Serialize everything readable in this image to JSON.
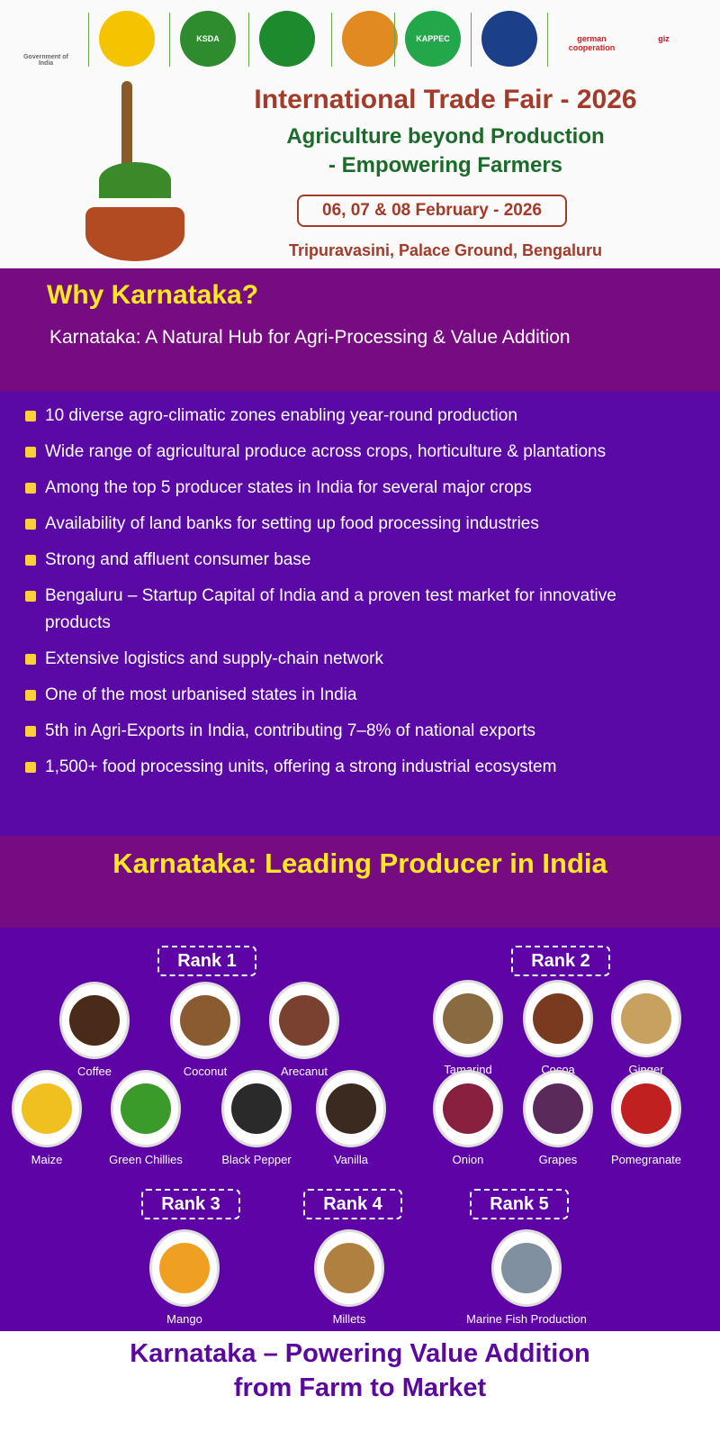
{
  "logos": [
    {
      "name": "government-of-india-emblem",
      "text": "Government of India",
      "color": "#666666"
    },
    {
      "name": "karnataka-govt-logo",
      "color": "#f5c400"
    },
    {
      "name": "ksda-logo",
      "text": "KSDA",
      "color": "#2e8b2e"
    },
    {
      "name": "agri-dept-logo",
      "color": "#1e8a2e"
    },
    {
      "name": "mascot-logo",
      "color": "#e08a20"
    },
    {
      "name": "kappec-logo",
      "text": "KAPPEC",
      "color": "#22a84a"
    },
    {
      "name": "ministry-food-processing-logo",
      "color": "#1c3f8a"
    },
    {
      "name": "german-cooperation-logo",
      "text": "german cooperation",
      "color": "#cc2222"
    },
    {
      "name": "giz-logo",
      "text": "giz",
      "color": "#c8102e"
    }
  ],
  "header": {
    "title": "International Trade Fair - 2026",
    "subtitle_line1": "Agriculture beyond Production",
    "subtitle_line2": "- Empowering Farmers",
    "dates": "06, 07 & 08 February - 2026",
    "venue": "Tripuravasini, Palace Ground, Bengaluru"
  },
  "why": {
    "heading": "Why Karnataka?",
    "subheading": "Karnataka:  A Natural Hub for Agri-Processing & Value Addition",
    "bullets": [
      "10 diverse agro-climatic zones enabling year-round production",
      "Wide range of agricultural produce across crops, horticulture & plantations",
      "Among the top 5 producer states in India for several major crops",
      "Availability of land banks for setting up food processing industries",
      "Strong and affluent consumer base",
      "Bengaluru – Startup Capital of India and a proven test market for innovative products",
      "Extensive logistics and supply-chain network",
      "One of the most urbanised states in India",
      "5th in Agri-Exports in India, contributing 7–8% of national exports",
      "1,500+ food processing units, offering a strong industrial ecosystem"
    ]
  },
  "producer": {
    "heading": "Karnataka: Leading Producer in India",
    "ranks": [
      "Rank 1",
      "Rank 2",
      "Rank 3",
      "Rank 4",
      "Rank 5"
    ],
    "items": [
      {
        "label": "Coffee",
        "color": "#4a2a18"
      },
      {
        "label": "Coconut",
        "color": "#8a5a30"
      },
      {
        "label": "Arecanut",
        "color": "#7a4030"
      },
      {
        "label": "Maize",
        "color": "#f0c020"
      },
      {
        "label": "Green Chillies",
        "color": "#3a9a2a"
      },
      {
        "label": "Black Pepper",
        "color": "#2a2a2a"
      },
      {
        "label": "Vanilla",
        "color": "#3a2a20"
      },
      {
        "label": "Tamarind",
        "color": "#8a6a40"
      },
      {
        "label": "Cocoa",
        "color": "#7a3a20"
      },
      {
        "label": "Ginger",
        "color": "#c8a060"
      },
      {
        "label": "Onion",
        "color": "#8a2040"
      },
      {
        "label": "Grapes",
        "color": "#5a2a5a"
      },
      {
        "label": "Pomegranate",
        "color": "#c02020"
      },
      {
        "label": "Mango",
        "color": "#f0a020"
      },
      {
        "label": "Millets",
        "color": "#b08040"
      },
      {
        "label": "Marine Fish Production",
        "color": "#8090a0"
      }
    ]
  },
  "footer": {
    "line1": "Karnataka – Powering Value Addition",
    "line2": "from Farm to Market"
  },
  "colors": {
    "band": "#760b82",
    "purple": "#5a08a6",
    "accent_yellow": "#ffe81f",
    "title_red": "#a33a2a",
    "title_green": "#1d6b2b"
  }
}
